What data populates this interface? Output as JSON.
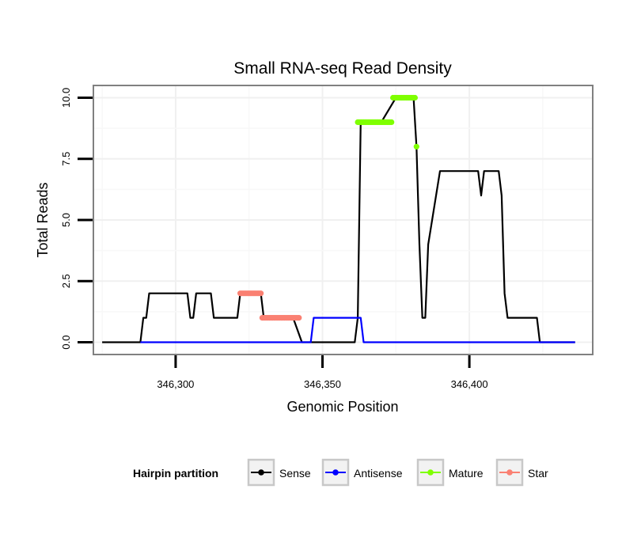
{
  "chart_data": {
    "type": "line",
    "title": "Small RNA-seq Read Density",
    "xlabel": "Genomic Position",
    "ylabel": "Total Reads",
    "xlim": [
      346272,
      346442
    ],
    "ylim": [
      -0.5,
      10.5
    ],
    "x_ticks": [
      346300,
      346350,
      346400
    ],
    "x_tick_labels": [
      "346,300",
      "346,350",
      "346,400"
    ],
    "y_ticks": [
      0,
      2.5,
      5,
      7.5,
      10
    ],
    "y_tick_labels": [
      "0.0",
      "2.5",
      "5.0",
      "7.5",
      "10.0"
    ],
    "grid": true,
    "legend": {
      "title": "Hairpin partition",
      "position": "bottom",
      "entries": [
        {
          "name": "Sense",
          "color": "#000000"
        },
        {
          "name": "Antisense",
          "color": "#0000ff"
        },
        {
          "name": "Mature",
          "color": "#7fff00"
        },
        {
          "name": "Star",
          "color": "#fa8072"
        }
      ]
    },
    "series": [
      {
        "name": "Sense",
        "color": "#000000",
        "style": "line",
        "x": [
          346275,
          346288,
          346289,
          346290,
          346291,
          346304,
          346305,
          346306,
          346307,
          346312,
          346313,
          346321,
          346322,
          346329,
          346330,
          346337,
          346338,
          346340,
          346343,
          346350,
          346353,
          346361,
          346362,
          346363,
          346364,
          346369,
          346370,
          346375,
          346376,
          346377,
          346378,
          346380,
          346381,
          346382,
          346383,
          346384,
          346385,
          346386,
          346390,
          346394,
          346403,
          346404,
          346405,
          346410,
          346411,
          346412,
          346413,
          346414,
          346423,
          346424,
          346436
        ],
        "y": [
          0,
          0,
          1,
          1,
          2,
          2,
          1,
          1,
          2,
          2,
          1,
          1,
          2,
          2,
          1,
          1,
          1,
          1,
          0,
          0,
          0,
          0,
          1,
          9,
          9,
          9,
          9,
          10,
          10,
          10,
          10,
          10,
          10,
          8,
          4,
          1,
          1,
          4,
          7,
          7,
          7,
          6,
          7,
          7,
          6,
          2,
          1,
          1,
          1,
          0,
          0
        ]
      },
      {
        "name": "Antisense",
        "color": "#0000ff",
        "style": "line",
        "x": [
          346288,
          346346,
          346347,
          346363,
          346364,
          346436
        ],
        "y": [
          0,
          0,
          1,
          1,
          0,
          0
        ]
      },
      {
        "name": "Mature",
        "color": "#7fff00",
        "style": "points",
        "x": [
          346362,
          346362.5,
          346363,
          346363.5,
          346364,
          346364.5,
          346365,
          346365.5,
          346366,
          346366.5,
          346367,
          346367.5,
          346368,
          346368.5,
          346369,
          346369.5,
          346370,
          346370.5,
          346371,
          346371.5,
          346372,
          346372.5,
          346373,
          346373.5,
          346374,
          346374.5,
          346375,
          346375.5,
          346376,
          346376.5,
          346377,
          346377.5,
          346378,
          346378.5,
          346379,
          346379.5,
          346380,
          346380.5,
          346381,
          346381.5,
          346382
        ],
        "y": [
          9,
          9,
          9,
          9,
          9,
          9,
          9,
          9,
          9,
          9,
          9,
          9,
          9,
          9,
          9,
          9,
          9,
          9,
          9,
          9,
          9,
          9,
          9,
          9,
          10,
          10,
          10,
          10,
          10,
          10,
          10,
          10,
          10,
          10,
          10,
          10,
          10,
          10,
          10,
          10,
          8
        ]
      },
      {
        "name": "Star",
        "color": "#fa8072",
        "style": "points",
        "x": [
          346322,
          346322.5,
          346323,
          346323.5,
          346324,
          346324.5,
          346325,
          346325.5,
          346326,
          346326.5,
          346327,
          346327.5,
          346328,
          346328.5,
          346329,
          346329.5,
          346330,
          346330.5,
          346331,
          346331.5,
          346332,
          346332.5,
          346333,
          346333.5,
          346334,
          346334.5,
          346335,
          346335.5,
          346336,
          346336.5,
          346337,
          346337.5,
          346338,
          346338.5,
          346339,
          346339.5,
          346340,
          346340.5,
          346341,
          346341.5,
          346342
        ],
        "y": [
          2,
          2,
          2,
          2,
          2,
          2,
          2,
          2,
          2,
          2,
          2,
          2,
          2,
          2,
          2,
          1,
          1,
          1,
          1,
          1,
          1,
          1,
          1,
          1,
          1,
          1,
          1,
          1,
          1,
          1,
          1,
          1,
          1,
          1,
          1,
          1,
          1,
          1,
          1,
          1,
          1
        ]
      }
    ]
  }
}
